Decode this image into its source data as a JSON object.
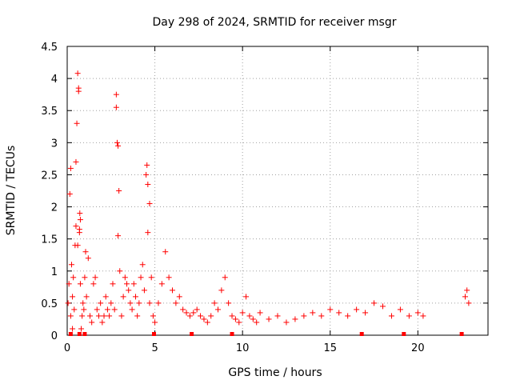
{
  "chart_data": {
    "type": "scatter",
    "title": "Day 298 of 2024, SRMTID for receiver msgr",
    "xlabel": "GPS time / hours",
    "ylabel": "SRMTID / TECUs",
    "xlim": [
      0,
      24
    ],
    "ylim": [
      0,
      4.5
    ],
    "xticks": [
      0,
      5,
      10,
      15,
      20
    ],
    "yticks": [
      0,
      0.5,
      1,
      1.5,
      2,
      2.5,
      3,
      3.5,
      4,
      4.5
    ],
    "xtick_labels": [
      "0",
      "5",
      "10",
      "15",
      "20"
    ],
    "ytick_labels": [
      "0",
      "0.5",
      "1",
      "1.5",
      "2",
      "2.5",
      "3",
      "3.5",
      "4",
      "4.5"
    ],
    "grid": true,
    "marker": "+",
    "color": "#ff0000",
    "series": [
      {
        "name": "SRMTID",
        "x": [
          0.05,
          0.1,
          0.15,
          0.2,
          0.25,
          0.3,
          0.35,
          0.4,
          0.45,
          0.5,
          0.55,
          0.6,
          0.65,
          0.7,
          0.72,
          0.75,
          0.8,
          0.85,
          0.9,
          0.95,
          1.0,
          1.1,
          1.2,
          1.3,
          1.4,
          1.5,
          1.6,
          1.7,
          1.8,
          1.9,
          2.0,
          2.1,
          2.2,
          2.3,
          2.4,
          2.5,
          2.6,
          2.7,
          2.8,
          2.85,
          2.9,
          2.95,
          3.0,
          3.1,
          3.2,
          3.3,
          3.4,
          3.5,
          3.6,
          3.7,
          3.8,
          3.9,
          4.0,
          4.1,
          4.2,
          4.3,
          4.4,
          4.5,
          4.55,
          4.6,
          4.7,
          4.8,
          4.9,
          5.0,
          5.2,
          5.4,
          5.6,
          5.8,
          6.0,
          6.2,
          6.4,
          6.6,
          6.8,
          7.0,
          7.2,
          7.4,
          7.6,
          7.8,
          8.0,
          8.2,
          8.4,
          8.6,
          8.8,
          9.0,
          9.2,
          9.4,
          9.6,
          9.8,
          10.0,
          10.2,
          10.4,
          10.6,
          10.8,
          11.0,
          11.5,
          12.0,
          12.5,
          13.0,
          13.5,
          14.0,
          14.5,
          15.0,
          15.5,
          16.0,
          16.5,
          17.0,
          17.5,
          18.0,
          18.5,
          19.0,
          19.5,
          20.0,
          20.3,
          22.7,
          22.8,
          22.9,
          0.2,
          0.65,
          0.7,
          2.8,
          2.9,
          4.6,
          4.7,
          0.3,
          0.6,
          1.05,
          0.5,
          0.75
        ],
        "y": [
          0.5,
          0.8,
          2.2,
          0.3,
          1.1,
          0.6,
          0.9,
          0.4,
          1.4,
          2.7,
          3.3,
          4.08,
          3.8,
          1.6,
          1.9,
          0.8,
          0.1,
          0.3,
          0.5,
          0.4,
          0.9,
          0.6,
          1.2,
          0.3,
          0.2,
          0.8,
          0.9,
          0.4,
          0.3,
          0.5,
          0.2,
          0.3,
          0.6,
          0.4,
          0.3,
          0.5,
          0.8,
          0.4,
          3.75,
          3.0,
          1.55,
          2.25,
          1.0,
          0.3,
          0.6,
          0.9,
          0.8,
          0.7,
          0.5,
          0.4,
          0.8,
          0.6,
          0.3,
          0.5,
          0.9,
          1.1,
          0.7,
          2.5,
          2.65,
          1.6,
          0.5,
          0.9,
          0.3,
          0.2,
          0.5,
          0.8,
          1.3,
          0.9,
          0.7,
          0.5,
          0.6,
          0.4,
          0.35,
          0.3,
          0.35,
          0.4,
          0.3,
          0.25,
          0.2,
          0.3,
          0.5,
          0.4,
          0.7,
          0.9,
          0.5,
          0.3,
          0.25,
          0.2,
          0.35,
          0.6,
          0.3,
          0.25,
          0.2,
          0.35,
          0.25,
          0.3,
          0.2,
          0.25,
          0.3,
          0.35,
          0.3,
          0.4,
          0.35,
          0.3,
          0.4,
          0.35,
          0.5,
          0.45,
          0.3,
          0.4,
          0.3,
          0.35,
          0.3,
          0.6,
          0.7,
          0.5,
          2.6,
          3.85,
          1.65,
          3.55,
          2.95,
          2.35,
          2.05,
          0.1,
          1.4,
          1.3,
          1.7,
          1.8
        ],
        "baseline_x": [
          0.2,
          0.7,
          1.0,
          4.95,
          7.1,
          9.4,
          16.8,
          19.2,
          22.5
        ]
      }
    ]
  }
}
